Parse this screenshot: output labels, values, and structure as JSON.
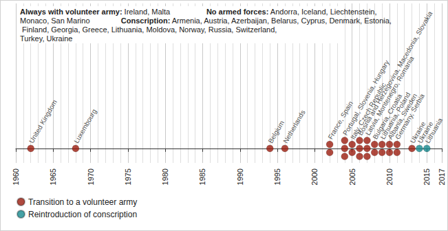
{
  "chart_data": {
    "type": "timeline",
    "notes": [
      {
        "heading": "Always with volunteer army:",
        "text": "Ireland, Malta"
      },
      {
        "heading": "No armed forces:",
        "text": "Andorra, Iceland, Liechtenstein, Monaco, San Marino"
      },
      {
        "heading": "Conscription:",
        "text": "Armenia, Austria, Azerbaijan, Belarus, Cyprus, Denmark, Estonia, Finland, Georgia, Greece, Lithuania, Moldova, Norway, Russia, Switzerland, Turkey, Ukraine"
      }
    ],
    "xlim": [
      1960,
      2017
    ],
    "xticks": [
      1960,
      1965,
      1970,
      1975,
      1980,
      1985,
      1990,
      1995,
      2000,
      2005,
      2010,
      2015
    ],
    "grid": true,
    "legend": "bottom-left",
    "marker": "circle",
    "series": [
      {
        "name": "Transition to a volunteer army",
        "color": "#9b1b0e",
        "x": [
          1962,
          1968,
          1994,
          1996,
          2002,
          2004,
          2005,
          2006,
          2007,
          2008,
          2009,
          2010,
          2011,
          2013
        ],
        "labels": [
          "United Kingdom",
          "Luxembourg",
          "Belgium",
          "Netherlands",
          "France, Spain",
          "Portugal, Slovenia, Hungary",
          "Italy, Czech Republic",
          "Bosnia and Herzegovina, Macedonia, Slovakia",
          "Latvia, Montenegro, Romania",
          "Bulgaria, Croatia",
          "Lithuania, Poland",
          "Albania, Sweden",
          "Germany, Serbia",
          "Ukraine"
        ]
      },
      {
        "name": "Reintroduction of conscription",
        "color": "#178a8f",
        "x": [
          2014,
          2015
        ],
        "labels": [
          "Ukraine",
          "Lithuania"
        ]
      }
    ]
  }
}
